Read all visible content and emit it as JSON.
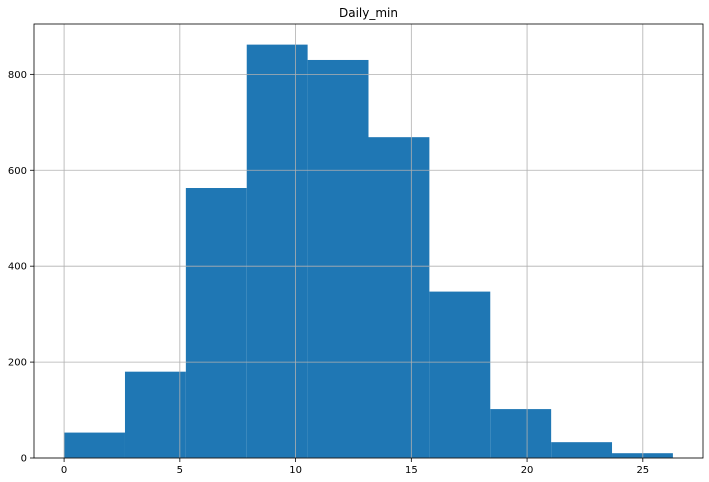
{
  "chart_data": {
    "type": "bar",
    "title": "Daily_min",
    "xlabel": "",
    "ylabel": "",
    "bin_edges": [
      0.0,
      2.63,
      5.26,
      7.89,
      10.52,
      13.15,
      15.78,
      18.41,
      21.04,
      23.67,
      26.3
    ],
    "values": [
      53,
      180,
      563,
      862,
      830,
      669,
      347,
      102,
      33,
      10
    ],
    "xlim": [
      -1.3,
      27.6
    ],
    "ylim": [
      0,
      905
    ],
    "xticks": [
      0,
      5,
      10,
      15,
      20,
      25
    ],
    "yticks": [
      0,
      200,
      400,
      600,
      800
    ],
    "xtick_labels": [
      "0",
      "5",
      "10",
      "15",
      "20",
      "25"
    ],
    "ytick_labels": [
      "0",
      "200",
      "400",
      "600",
      "800"
    ],
    "grid": true,
    "bar_color": "#1f77b4",
    "grid_color": "#b0b0b0"
  }
}
